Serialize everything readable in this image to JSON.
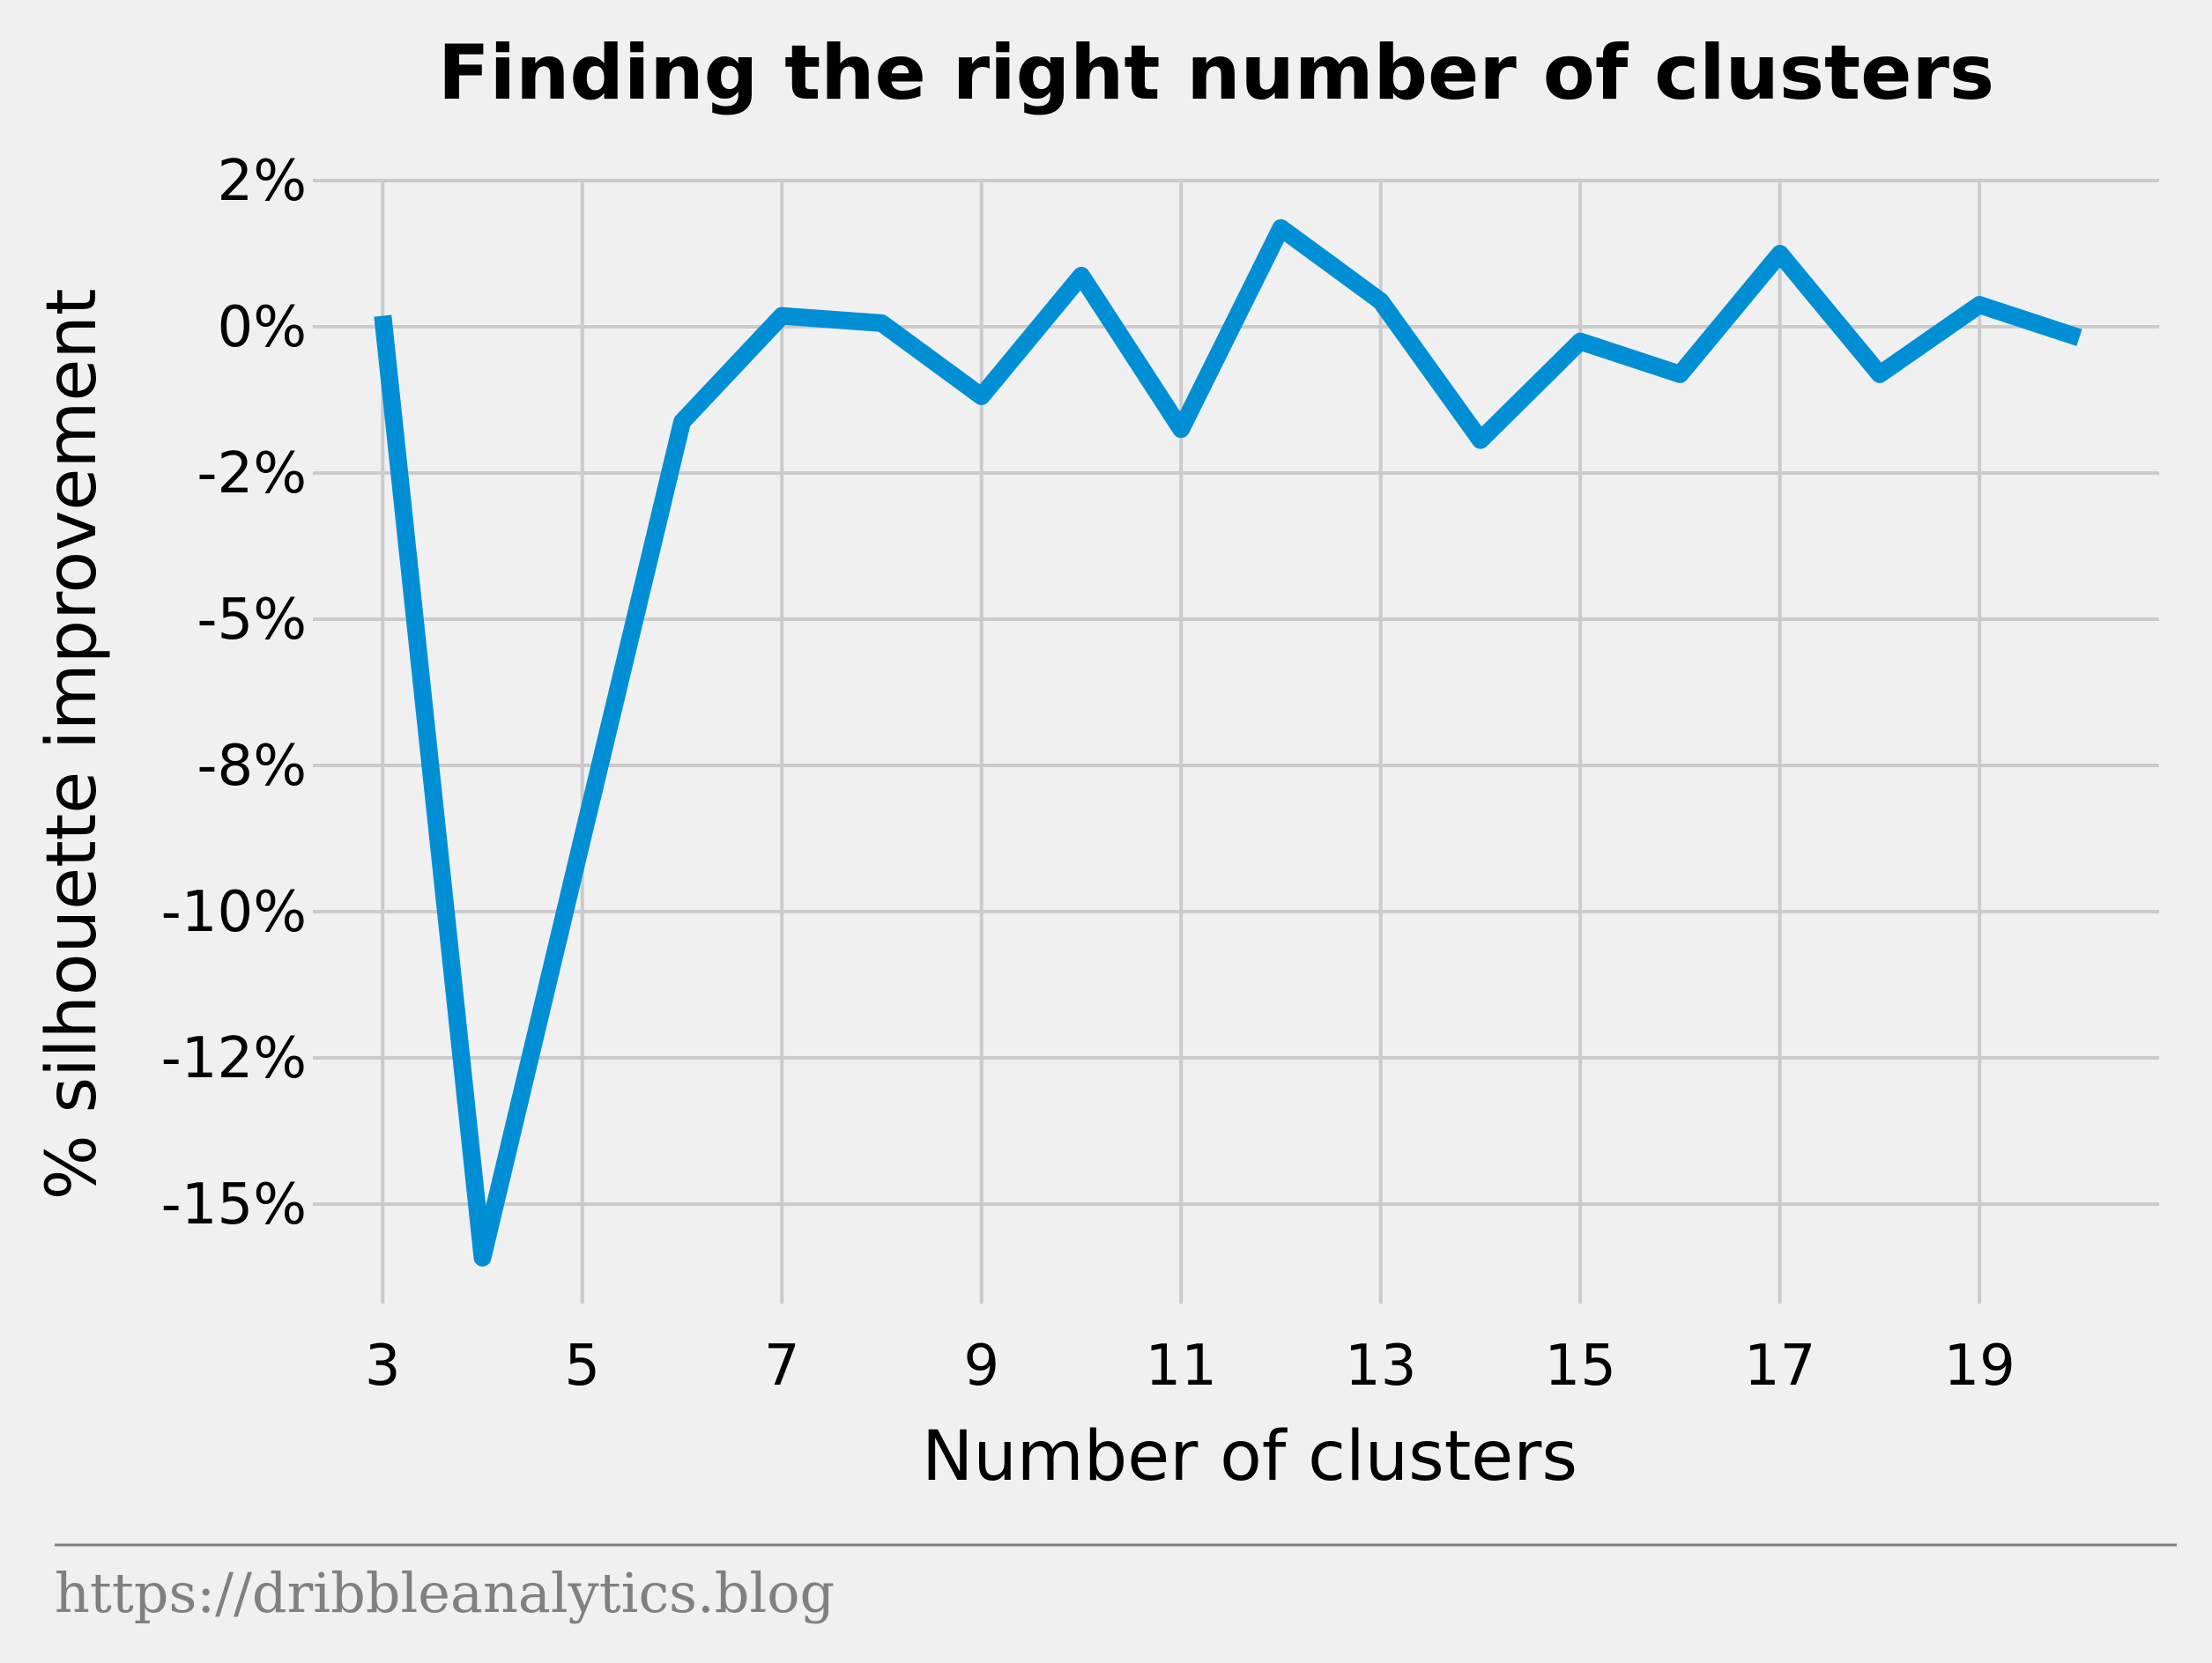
{
  "chart_data": {
    "type": "line",
    "title": "Finding the right number of clusters",
    "xlabel": "Number of clusters",
    "ylabel": "% silhouette improvement",
    "x": [
      3,
      4,
      5,
      6,
      7,
      8,
      9,
      10,
      11,
      12,
      13,
      14,
      15,
      16,
      17,
      18,
      19,
      20
    ],
    "series": [
      {
        "values": [
          0.15,
          -16.1,
          -9.0,
          -1.3,
          0.15,
          0.05,
          -0.95,
          0.7,
          -1.4,
          1.35,
          0.35,
          -1.55,
          -0.2,
          -0.65,
          1.0,
          -0.65,
          0.3,
          -0.15
        ],
        "color": "#008fd5"
      }
    ],
    "xticks": [
      3,
      5,
      7,
      9,
      11,
      13,
      15,
      17,
      19
    ],
    "xtick_labels": [
      "3",
      "5",
      "7",
      "9",
      "11",
      "13",
      "15",
      "17",
      "19"
    ],
    "yticks": [
      2,
      0,
      -2,
      -5,
      -8,
      -10,
      -12,
      -15
    ],
    "ytick_labels": [
      "2%",
      "0%",
      "-2%",
      "-5%",
      "-8%",
      "-10%",
      "-12%",
      "-15%"
    ],
    "xlim": [
      2.3,
      20.8
    ],
    "ylim": [
      -16.5,
      2
    ],
    "grid": true,
    "grid_color": "#cbcbcb",
    "background": "#f0f0f0"
  },
  "footer": {
    "source": "https://dribbleanalytics.blog",
    "source_color": "#808080",
    "rule_color": "#808080"
  }
}
